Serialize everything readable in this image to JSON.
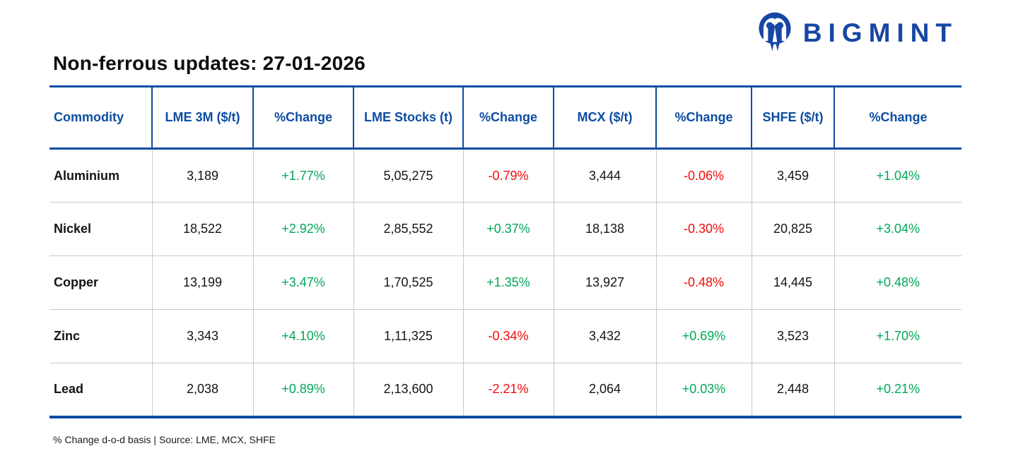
{
  "logo": {
    "brand": "BIGMINT"
  },
  "title": "Non-ferrous updates: 27-01-2026",
  "footer": "% Change d-o-d basis | Source: LME, MCX, SHFE",
  "colors": {
    "table_blue": "#0d4da2",
    "logo_blue": "#1647a4",
    "positive_green": "#00a859",
    "negative_red": "#f40b0b"
  },
  "chart_data": {
    "type": "table",
    "title": "Non-ferrous updates: 27-01-2026",
    "columns": [
      "Commodity",
      "LME 3M ($/t)",
      "%Change",
      "LME Stocks (t)",
      "%Change",
      "MCX ($/t)",
      "%Change",
      "SHFE ($/t)",
      "%Change"
    ],
    "rows": [
      [
        "Aluminium",
        "3,189",
        "+1.77%",
        "5,05,275",
        "-0.79%",
        "3,444",
        "-0.06%",
        "3,459",
        "+1.04%"
      ],
      [
        "Nickel",
        "18,522",
        "+2.92%",
        "2,85,552",
        "+0.37%",
        "18,138",
        "-0.30%",
        "20,825",
        "+3.04%"
      ],
      [
        "Copper",
        "13,199",
        "+3.47%",
        "1,70,525",
        "+1.35%",
        "13,927",
        "-0.48%",
        "14,445",
        "+0.48%"
      ],
      [
        "Zinc",
        "3,343",
        "+4.10%",
        "1,11,325",
        "-0.34%",
        "3,432",
        "+0.69%",
        "3,523",
        "+1.70%"
      ],
      [
        "Lead",
        "2,038",
        "+0.89%",
        "2,13,600",
        "-2.21%",
        "2,064",
        "+0.03%",
        "2,448",
        "+0.21%"
      ]
    ],
    "notes": "% Change d-o-d basis | Source: LME, MCX, SHFE"
  }
}
